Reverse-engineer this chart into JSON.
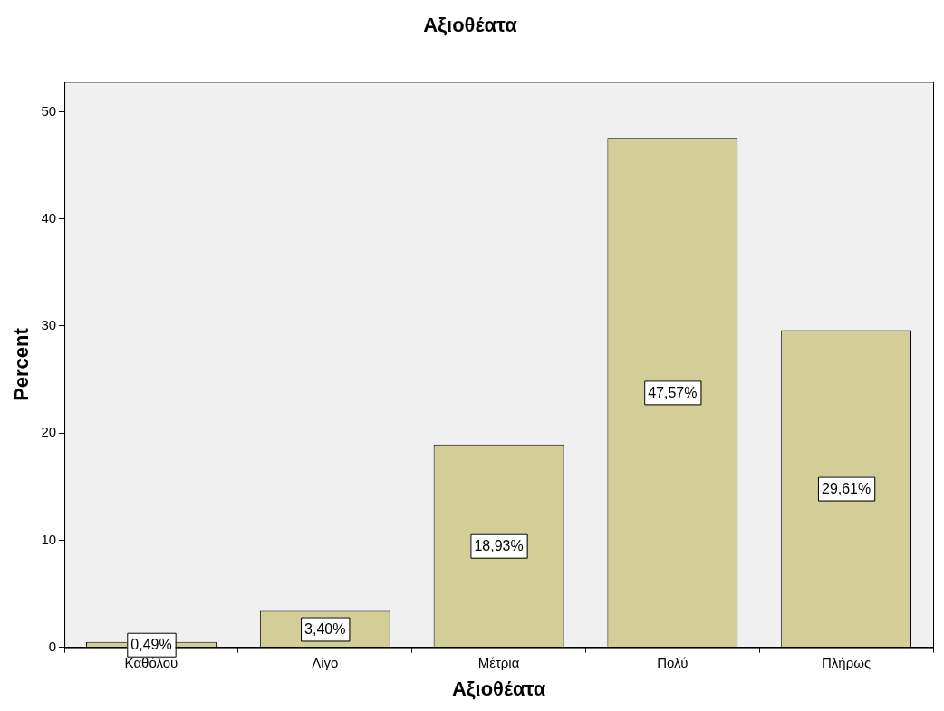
{
  "chart_data": {
    "type": "bar",
    "title": "Αξιοθέατα",
    "xlabel": "Αξιοθέατα",
    "ylabel": "Percent",
    "categories": [
      "Καθόλου",
      "Λίγο",
      "Μέτρια",
      "Πολύ",
      "Πλήρως"
    ],
    "values": [
      0.49,
      3.4,
      18.93,
      47.57,
      29.61
    ],
    "value_labels": [
      "0,49%",
      "3,40%",
      "18,93%",
      "47,57%",
      "29,61%"
    ],
    "color": "#d3ce97",
    "ylim": [
      0,
      52.8
    ],
    "yticks": [
      0,
      10,
      20,
      30,
      40,
      50
    ],
    "grid": false,
    "legend": false
  }
}
